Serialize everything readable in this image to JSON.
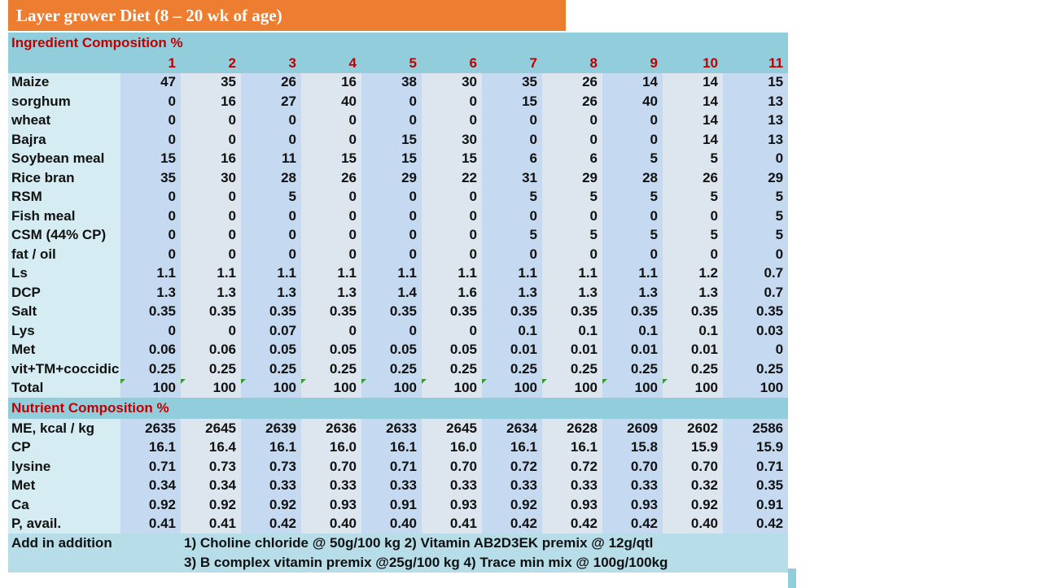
{
  "title": "Layer grower Diet (8 – 20 wk of age)",
  "sections": {
    "ingredient": "Ingredient Composition %",
    "nutrient": "Nutrient Composition %"
  },
  "columns": [
    "1",
    "2",
    "3",
    "4",
    "5",
    "6",
    "7",
    "8",
    "9",
    "10",
    "11"
  ],
  "ingredients": [
    {
      "label": "Maize",
      "values": [
        "47",
        "35",
        "26",
        "16",
        "38",
        "30",
        "35",
        "26",
        "14",
        "14",
        "15"
      ]
    },
    {
      "label": "sorghum",
      "values": [
        "0",
        "16",
        "27",
        "40",
        "0",
        "0",
        "15",
        "26",
        "40",
        "14",
        "13"
      ]
    },
    {
      "label": "wheat",
      "values": [
        "0",
        "0",
        "0",
        "0",
        "0",
        "0",
        "0",
        "0",
        "0",
        "14",
        "13"
      ]
    },
    {
      "label": "Bajra",
      "values": [
        "0",
        "0",
        "0",
        "0",
        "15",
        "30",
        "0",
        "0",
        "0",
        "14",
        "13"
      ]
    },
    {
      "label": "Soybean meal",
      "values": [
        "15",
        "16",
        "11",
        "15",
        "15",
        "15",
        "6",
        "6",
        "5",
        "5",
        "0"
      ]
    },
    {
      "label": "Rice bran",
      "values": [
        "35",
        "30",
        "28",
        "26",
        "29",
        "22",
        "31",
        "29",
        "28",
        "26",
        "29"
      ]
    },
    {
      "label": "RSM",
      "values": [
        "0",
        "0",
        "5",
        "0",
        "0",
        "0",
        "5",
        "5",
        "5",
        "5",
        "5"
      ]
    },
    {
      "label": "Fish meal",
      "values": [
        "0",
        "0",
        "0",
        "0",
        "0",
        "0",
        "0",
        "0",
        "0",
        "0",
        "5"
      ]
    },
    {
      "label": "CSM (44% CP)",
      "values": [
        "0",
        "0",
        "0",
        "0",
        "0",
        "0",
        "5",
        "5",
        "5",
        "5",
        "5"
      ]
    },
    {
      "label": "fat / oil",
      "values": [
        "0",
        "0",
        "0",
        "0",
        "0",
        "0",
        "0",
        "0",
        "0",
        "0",
        "0"
      ]
    },
    {
      "label": "Ls",
      "values": [
        "1.1",
        "1.1",
        "1.1",
        "1.1",
        "1.1",
        "1.1",
        "1.1",
        "1.1",
        "1.1",
        "1.2",
        "0.7"
      ]
    },
    {
      "label": "DCP",
      "values": [
        "1.3",
        "1.3",
        "1.3",
        "1.3",
        "1.4",
        "1.6",
        "1.3",
        "1.3",
        "1.3",
        "1.3",
        "0.7"
      ]
    },
    {
      "label": "Salt",
      "values": [
        "0.35",
        "0.35",
        "0.35",
        "0.35",
        "0.35",
        "0.35",
        "0.35",
        "0.35",
        "0.35",
        "0.35",
        "0.35"
      ]
    },
    {
      "label": "Lys",
      "values": [
        "0",
        "0",
        "0.07",
        "0",
        "0",
        "0",
        "0.1",
        "0.1",
        "0.1",
        "0.1",
        "0.03"
      ]
    },
    {
      "label": "Met",
      "values": [
        "0.06",
        "0.06",
        "0.05",
        "0.05",
        "0.05",
        "0.05",
        "0.01",
        "0.01",
        "0.01",
        "0.01",
        "0"
      ]
    },
    {
      "label": "vit+TM+coccidic",
      "values": [
        "0.25",
        "0.25",
        "0.25",
        "0.25",
        "0.25",
        "0.25",
        "0.25",
        "0.25",
        "0.25",
        "0.25",
        "0.25"
      ]
    },
    {
      "label": "Total",
      "values": [
        "100",
        "100",
        "100",
        "100",
        "100",
        "100",
        "100",
        "100",
        "100",
        "100",
        "100"
      ]
    }
  ],
  "nutrients": [
    {
      "label": "ME, kcal / kg",
      "values": [
        "2635",
        "2645",
        "2639",
        "2636",
        "2633",
        "2645",
        "2634",
        "2628",
        "2609",
        "2602",
        "2586"
      ]
    },
    {
      "label": "CP",
      "values": [
        "16.1",
        "16.4",
        "16.1",
        "16.0",
        "16.1",
        "16.0",
        "16.1",
        "16.1",
        "15.8",
        "15.9",
        "15.9"
      ]
    },
    {
      "label": "lysine",
      "values": [
        "0.71",
        "0.73",
        "0.73",
        "0.70",
        "0.71",
        "0.70",
        "0.72",
        "0.72",
        "0.70",
        "0.70",
        "0.71"
      ]
    },
    {
      "label": "Met",
      "values": [
        "0.34",
        "0.34",
        "0.33",
        "0.33",
        "0.33",
        "0.33",
        "0.33",
        "0.33",
        "0.33",
        "0.32",
        "0.35"
      ]
    },
    {
      "label": "Ca",
      "values": [
        "0.92",
        "0.92",
        "0.92",
        "0.93",
        "0.91",
        "0.93",
        "0.92",
        "0.93",
        "0.93",
        "0.92",
        "0.91"
      ]
    },
    {
      "label": "P, avail.",
      "values": [
        "0.41",
        "0.41",
        "0.42",
        "0.40",
        "0.40",
        "0.41",
        "0.42",
        "0.42",
        "0.42",
        "0.40",
        "0.42"
      ]
    }
  ],
  "addition": {
    "label": "Add in addition",
    "line1": "1) Choline chloride @ 50g/100 kg   2) Vitamin AB2D3EK premix @ 12g/qtl",
    "line2": "3) B complex vitamin premix @25g/100 kg  4) Trace min mix @ 100g/100kg"
  },
  "colors": {
    "title_bg": "#ed7d31",
    "section_bg": "#92cddc",
    "section_text": "#c00000",
    "label_bg": "#d6ecf3",
    "odd_col_bg": "#c5d9f1",
    "even_col_bg": "#dde6ee"
  }
}
